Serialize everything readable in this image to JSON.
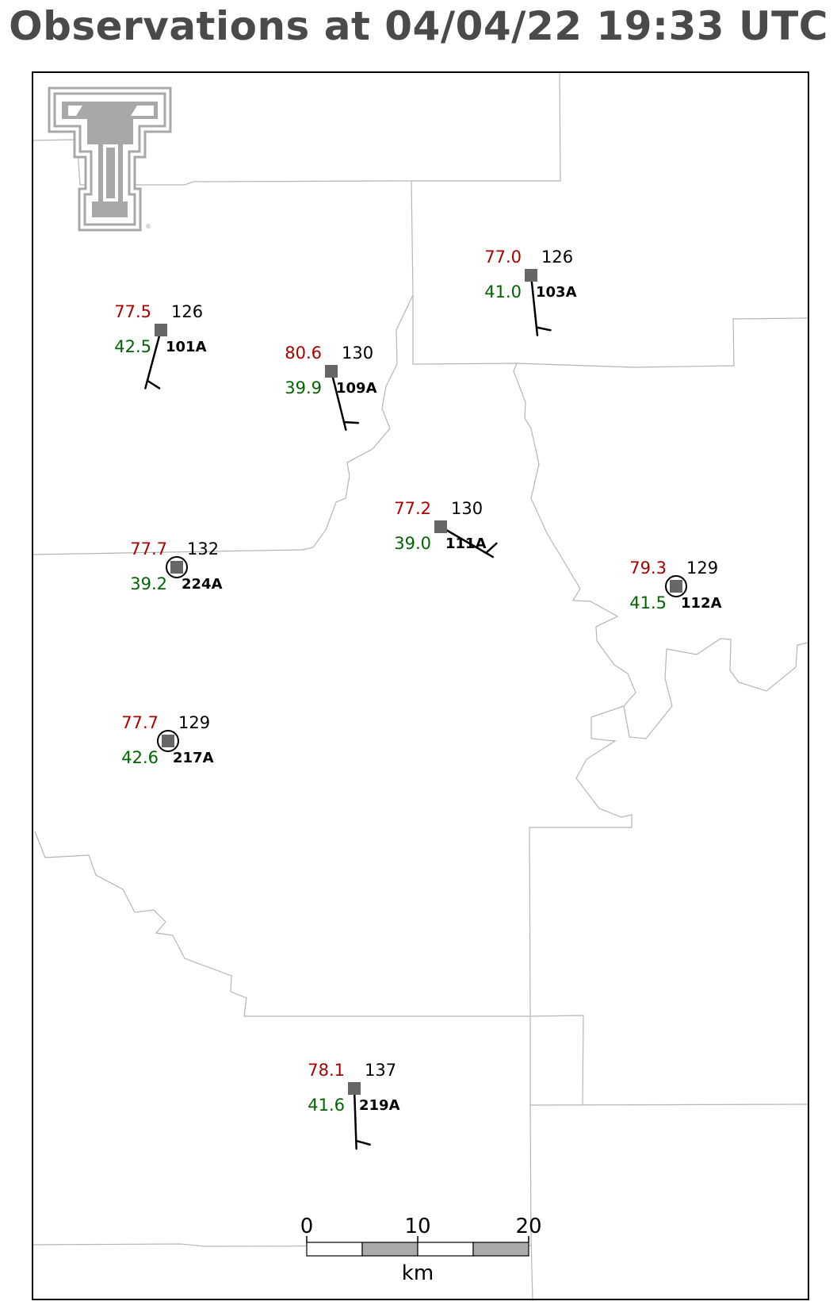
{
  "title": "Observations at 04/04/22 19:33 UTC",
  "colors": {
    "temperature": "#aa0000",
    "dewpoint": "#006400",
    "station_marker": "#666666",
    "county_lines": "#b5b5b5",
    "logo": "#a8a8a8",
    "title": "#4a4a4a"
  },
  "logo": {
    "name": "texas-tech-double-t-logo",
    "mark": "®"
  },
  "stations": [
    {
      "id": "101A",
      "temp": "77.5",
      "dewpoint": "42.5",
      "pressure": "126",
      "wind_dir_deg": 195,
      "wind_speed_kt": 10,
      "calm": false
    },
    {
      "id": "109A",
      "temp": "80.6",
      "dewpoint": "39.9",
      "pressure": "130",
      "wind_dir_deg": 166,
      "wind_speed_kt": 10,
      "calm": false
    },
    {
      "id": "103A",
      "temp": "77.0",
      "dewpoint": "41.0",
      "pressure": "126",
      "wind_dir_deg": 174,
      "wind_speed_kt": 10,
      "calm": false
    },
    {
      "id": "111A",
      "temp": "77.2",
      "dewpoint": "39.0",
      "pressure": "130",
      "wind_dir_deg": 120,
      "wind_speed_kt": 10,
      "calm": false
    },
    {
      "id": "224A",
      "temp": "77.7",
      "dewpoint": "39.2",
      "pressure": "132",
      "wind_dir_deg": 0,
      "wind_speed_kt": 0,
      "calm": true
    },
    {
      "id": "112A",
      "temp": "79.3",
      "dewpoint": "41.5",
      "pressure": "129",
      "wind_dir_deg": 0,
      "wind_speed_kt": 0,
      "calm": true
    },
    {
      "id": "217A",
      "temp": "77.7",
      "dewpoint": "42.6",
      "pressure": "129",
      "wind_dir_deg": 0,
      "wind_speed_kt": 0,
      "calm": true
    },
    {
      "id": "219A",
      "temp": "78.1",
      "dewpoint": "41.6",
      "pressure": "137",
      "wind_dir_deg": 178,
      "wind_speed_kt": 10,
      "calm": false
    }
  ],
  "scale_bar": {
    "ticks": [
      "0",
      "10",
      "20"
    ],
    "unit": "km"
  }
}
